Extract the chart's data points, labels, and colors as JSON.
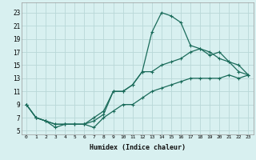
{
  "xlabel": "Humidex (Indice chaleur)",
  "bg_color": "#d8f0f0",
  "grid_color": "#b8d8d8",
  "line_color": "#1a6b5a",
  "xlim": [
    -0.5,
    23.5
  ],
  "ylim": [
    4.5,
    24.5
  ],
  "xticks": [
    0,
    1,
    2,
    3,
    4,
    5,
    6,
    7,
    8,
    9,
    10,
    11,
    12,
    13,
    14,
    15,
    16,
    17,
    18,
    19,
    20,
    21,
    22,
    23
  ],
  "yticks": [
    5,
    7,
    9,
    11,
    13,
    15,
    17,
    19,
    21,
    23
  ],
  "line1_x": [
    0,
    1,
    2,
    3,
    4,
    5,
    6,
    7,
    8,
    9,
    10,
    11,
    12,
    13,
    14,
    15,
    16,
    17,
    18,
    19,
    20,
    21,
    22,
    23
  ],
  "line1_y": [
    9,
    7,
    6.5,
    6,
    6,
    6,
    6,
    7,
    8,
    11,
    11,
    12,
    14,
    20,
    23,
    22.5,
    21.5,
    18,
    17.5,
    17,
    16,
    15.5,
    14,
    13.5
  ],
  "line2_x": [
    0,
    1,
    2,
    3,
    4,
    5,
    6,
    7,
    8,
    9,
    10,
    11,
    12,
    13,
    14,
    15,
    16,
    17,
    18,
    19,
    20,
    21,
    22,
    23
  ],
  "line2_y": [
    9,
    7,
    6.5,
    6,
    6,
    6,
    6,
    6.5,
    7.5,
    11,
    11,
    12,
    14,
    14,
    15,
    15.5,
    16,
    17,
    17.5,
    16.5,
    17,
    15.5,
    15,
    13.5
  ],
  "line3_x": [
    0,
    1,
    2,
    3,
    4,
    5,
    6,
    7,
    8,
    9,
    10,
    11,
    12,
    13,
    14,
    15,
    16,
    17,
    18,
    19,
    20,
    21,
    22,
    23
  ],
  "line3_y": [
    9,
    7,
    6.5,
    5.5,
    6,
    6,
    6,
    5.5,
    7,
    8,
    9,
    9,
    10,
    11,
    11.5,
    12,
    12.5,
    13,
    13,
    13,
    13,
    13.5,
    13,
    13.5
  ]
}
